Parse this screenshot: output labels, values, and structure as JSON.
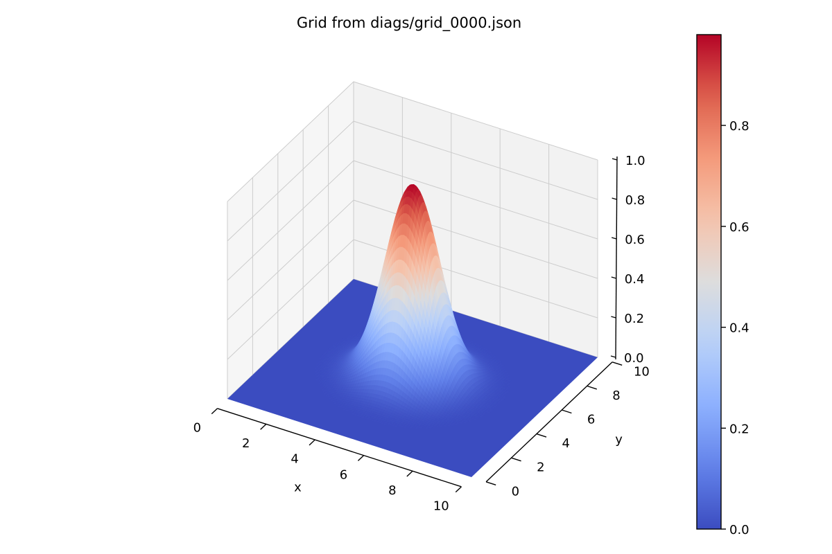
{
  "chart_data": {
    "type": "surface",
    "title": "Grid from diags/grid_0000.json",
    "xlabel": "x",
    "ylabel": "y",
    "zlabel": "",
    "xlim": [
      0,
      10
    ],
    "ylim": [
      0,
      10
    ],
    "zlim": [
      0,
      1.0
    ],
    "xticks": [
      "0",
      "2",
      "4",
      "6",
      "8",
      "10"
    ],
    "yticks": [
      "0",
      "2",
      "4",
      "6",
      "8",
      "10"
    ],
    "zticks": [
      "0.0",
      "0.2",
      "0.4",
      "0.6",
      "0.8",
      "1.0"
    ],
    "surface": {
      "function": "gaussian",
      "peak_value": 0.98,
      "center_x": 5,
      "center_y": 5,
      "sigma": 1.0,
      "grid_points": 100
    },
    "colormap": "coolwarm",
    "colorbar": {
      "min": 0.0,
      "max": 0.98,
      "ticks": [
        "0.0",
        "0.2",
        "0.4",
        "0.6",
        "0.8"
      ],
      "tick_values": [
        0.0,
        0.2,
        0.4,
        0.6,
        0.8
      ]
    },
    "colors": {
      "pane_back": "#f2f2f2",
      "pane_side": "#f6f6f6",
      "grid": "#cccccc",
      "cold": "#3b4cc0",
      "neutral": "#dddddd",
      "hot": "#b40426"
    },
    "grid": true
  }
}
